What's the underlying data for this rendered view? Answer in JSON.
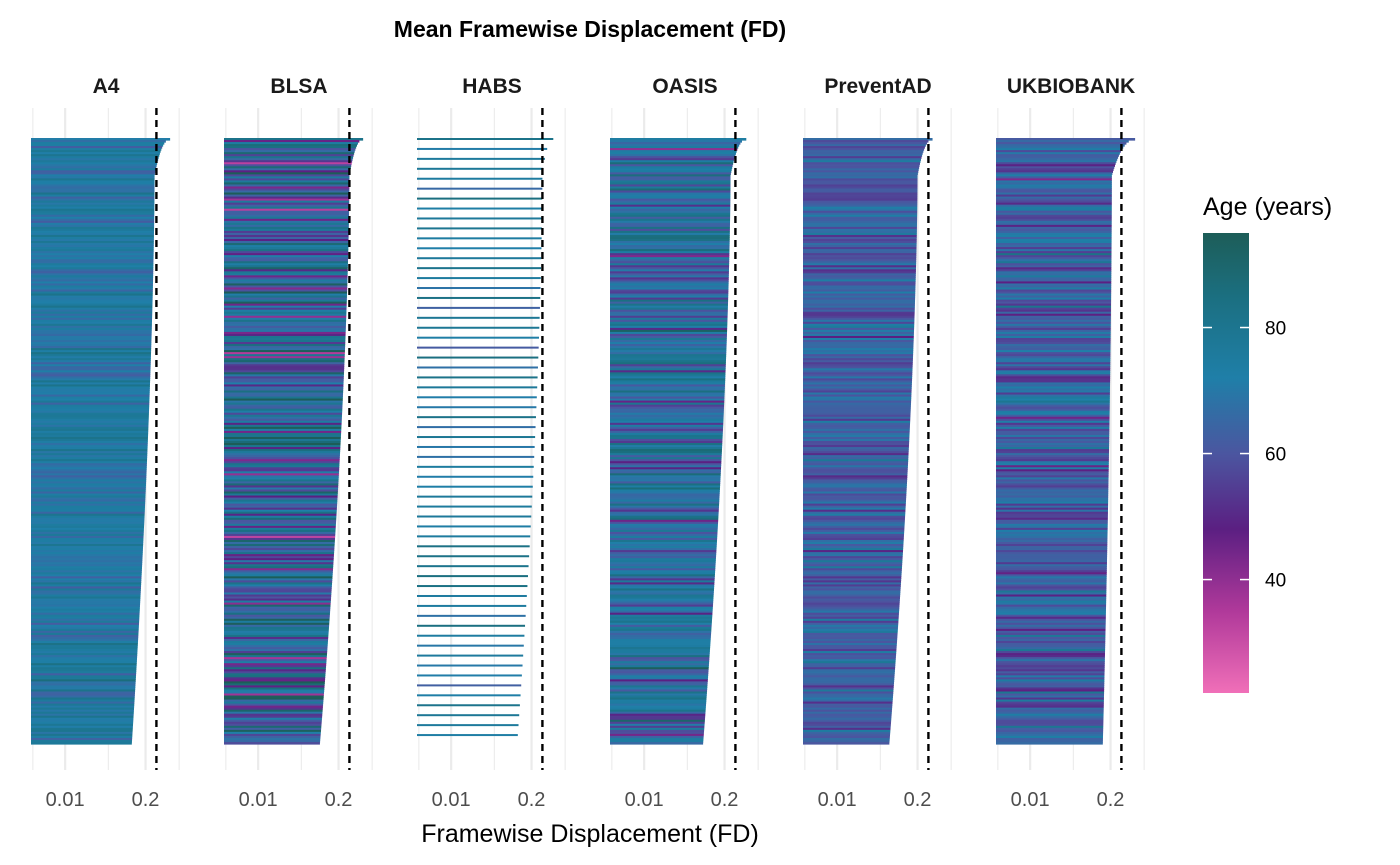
{
  "chart_data": {
    "type": "bar",
    "orientation": "horizontal",
    "title": "Mean Framewise Displacement (FD)",
    "xlabel": "Framewise Displacement (FD)",
    "ylabel": "",
    "x_scale": "log",
    "x_ticks": [
      {
        "value": 0.01,
        "label": "0.01"
      },
      {
        "value": 0.2,
        "label": "0.2"
      }
    ],
    "threshold": 0.3,
    "grid": true,
    "legend": {
      "title": "Age (years)",
      "placement": "right",
      "min": 22,
      "max": 95,
      "ticks": [
        40,
        60,
        80
      ],
      "gradient": [
        {
          "value": 22,
          "color": "#f06fb8"
        },
        {
          "value": 35,
          "color": "#b0399a"
        },
        {
          "value": 48,
          "color": "#5b1f82"
        },
        {
          "value": 60,
          "color": "#4b56a0"
        },
        {
          "value": 72,
          "color": "#1f7fa8"
        },
        {
          "value": 85,
          "color": "#1b6f80"
        },
        {
          "value": 95,
          "color": "#1d5d58"
        }
      ]
    },
    "facets": [
      {
        "name": "A4",
        "fd_max": 0.5,
        "fd_bulk": 0.28,
        "fd_min": 0.12,
        "age_mean": 72,
        "age_sd": 5
      },
      {
        "name": "BLSA",
        "fd_max": 0.5,
        "fd_bulk": 0.3,
        "fd_min": 0.1,
        "age_mean": 68,
        "age_sd": 15
      },
      {
        "name": "HABS",
        "fd_max": 0.45,
        "fd_bulk": 0.3,
        "fd_min": 0.12,
        "age_mean": 75,
        "age_sd": 6
      },
      {
        "name": "OASIS",
        "fd_max": 0.45,
        "fd_bulk": 0.25,
        "fd_min": 0.09,
        "age_mean": 68,
        "age_sd": 10
      },
      {
        "name": "PreventAD",
        "fd_max": 0.35,
        "fd_bulk": 0.2,
        "fd_min": 0.07,
        "age_mean": 63,
        "age_sd": 6
      },
      {
        "name": "UKBIOBANK",
        "fd_max": 0.5,
        "fd_bulk": 0.21,
        "fd_min": 0.15,
        "age_mean": 63,
        "age_sd": 7
      }
    ]
  }
}
